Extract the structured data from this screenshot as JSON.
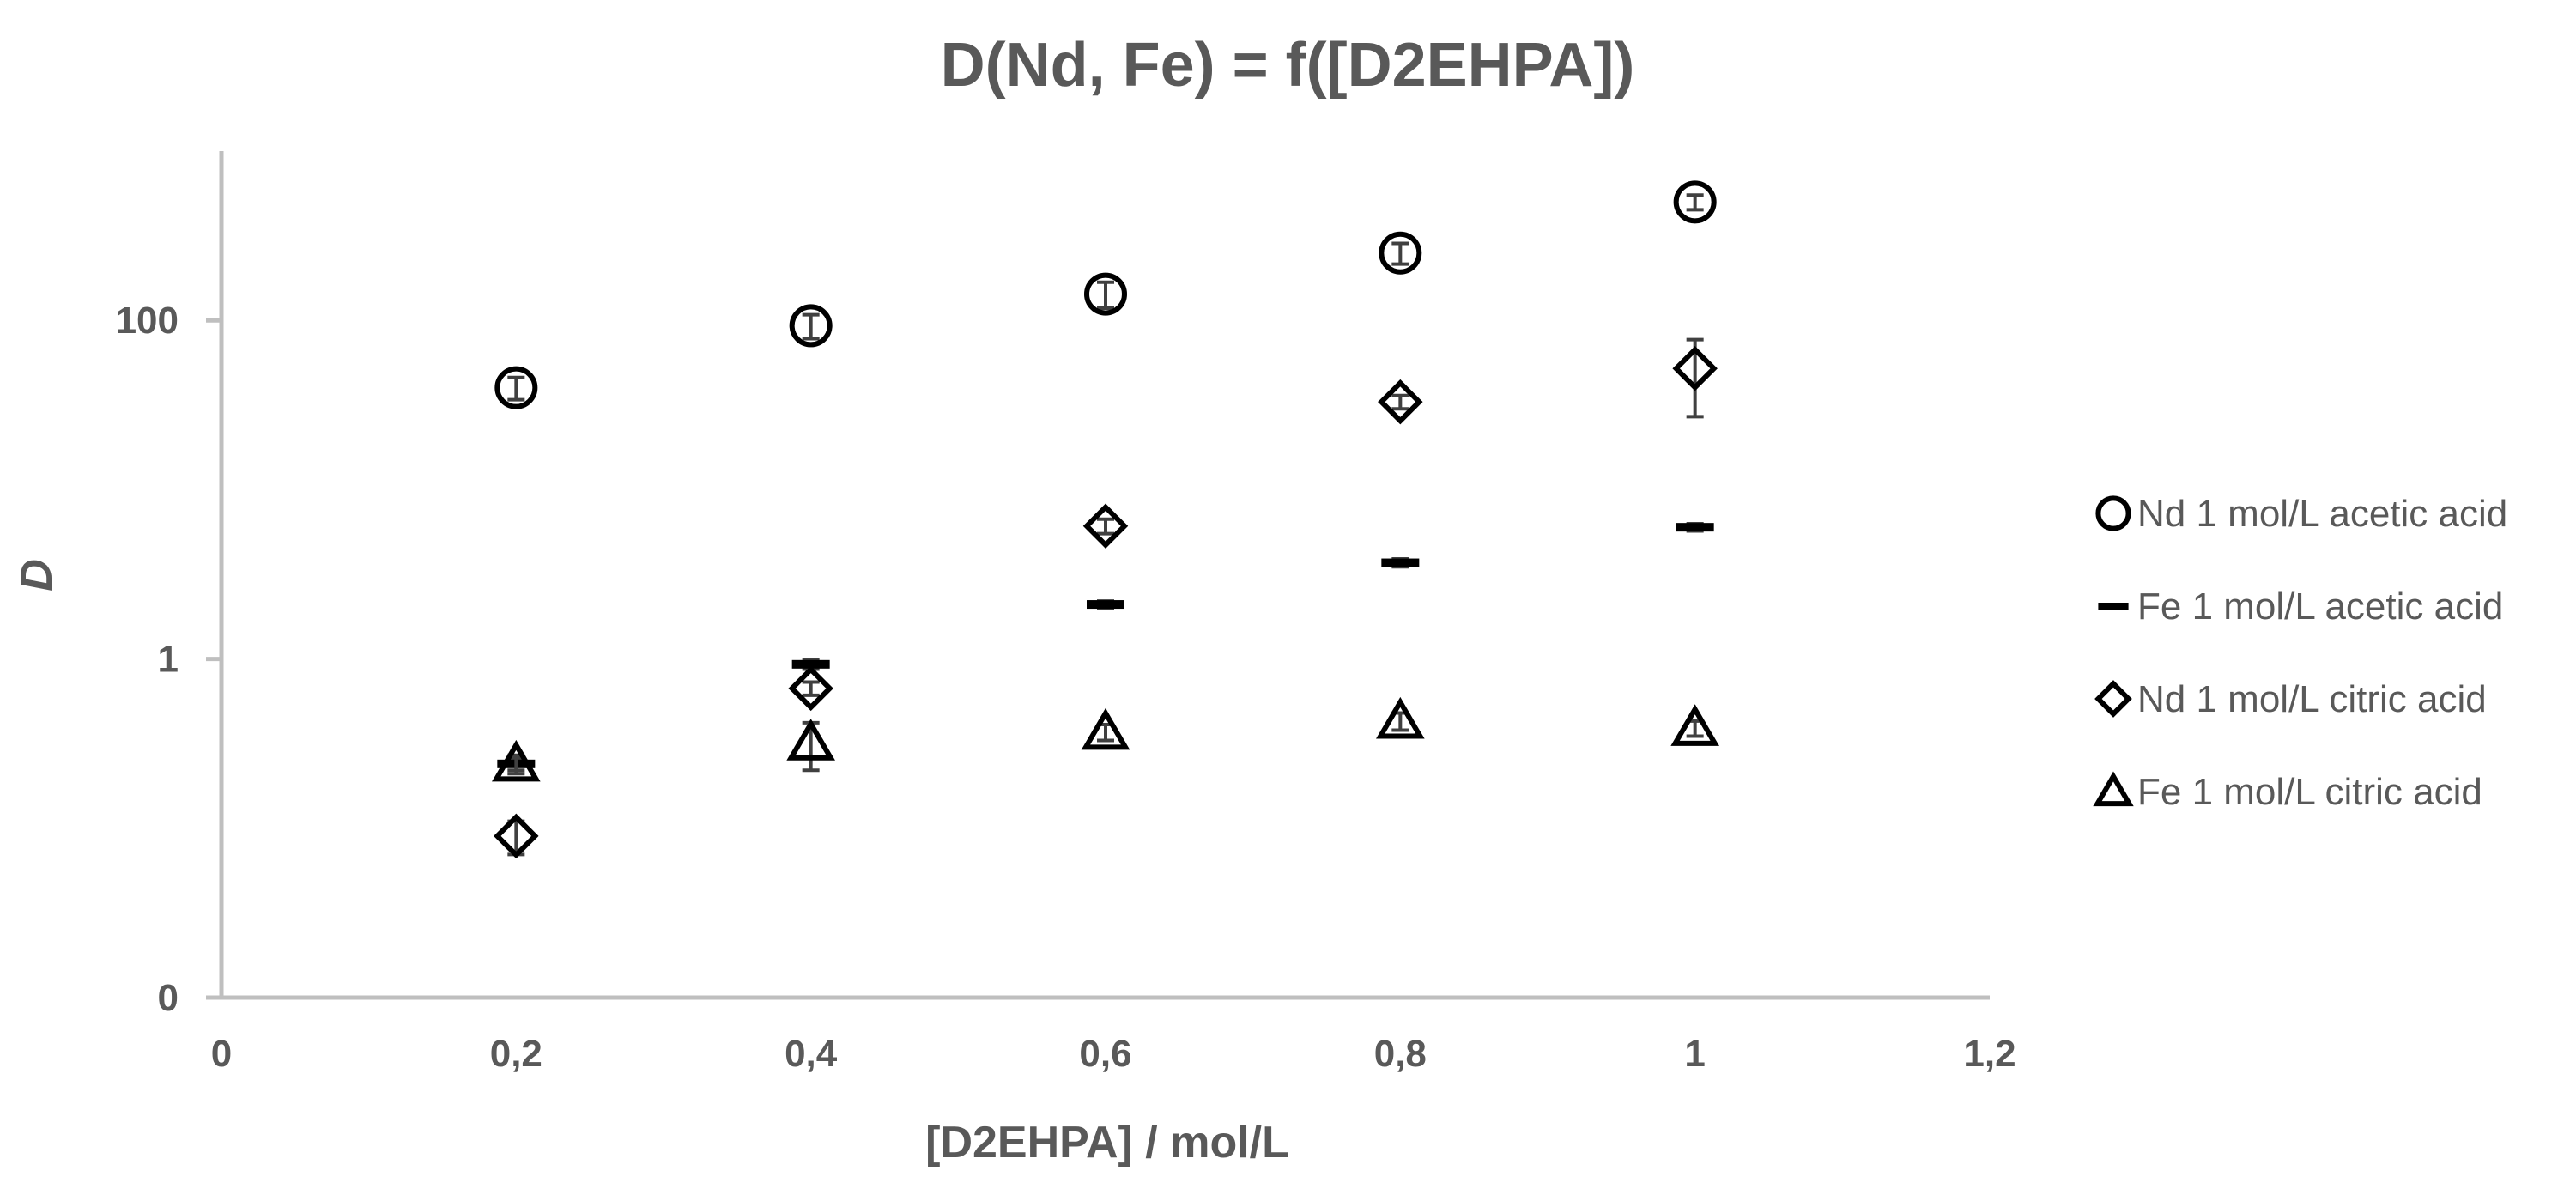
{
  "chart_data": {
    "type": "scatter",
    "title": "D(Nd, Fe) = f([D2EHPA])",
    "xlabel": "[D2EHPA] / mol/L",
    "ylabel": "D",
    "xlim": [
      0,
      1.2
    ],
    "ylim": [
      0.01,
      1000
    ],
    "y_scale": "log",
    "x_ticks": [
      0,
      0.2,
      0.4,
      0.6,
      0.8,
      1,
      1.2
    ],
    "x_tick_labels": [
      "0",
      "0,2",
      "0,4",
      "0,6",
      "0,8",
      "1",
      "1,2"
    ],
    "y_ticks": [
      0.01,
      1,
      100
    ],
    "y_tick_labels": [
      "0",
      "1",
      "100"
    ],
    "grid": false,
    "legend_position": "right",
    "series": [
      {
        "name": "Nd 1 mol/L acetic acid",
        "marker": "circle",
        "x": [
          0.2,
          0.4,
          0.6,
          0.8,
          1
        ],
        "y": [
          40,
          93,
          143,
          250,
          500
        ],
        "err": [
          6,
          15,
          25,
          35,
          50
        ]
      },
      {
        "name": "Fe 1 mol/L acetic acid",
        "marker": "dash",
        "x": [
          0.2,
          0.4,
          0.6,
          0.8,
          1
        ],
        "y": [
          0.24,
          0.93,
          2.1,
          3.7,
          6.0
        ],
        "err": [
          0.02,
          0.06,
          0.1,
          0.2,
          0.3
        ]
      },
      {
        "name": "Nd 1 mol/L citric acid",
        "marker": "diamond",
        "x": [
          0.2,
          0.4,
          0.6,
          0.8,
          1
        ],
        "y": [
          0.09,
          0.67,
          6.1,
          33,
          52
        ],
        "err": [
          0.02,
          0.06,
          0.6,
          3,
          25
        ]
      },
      {
        "name": "Fe 1 mol/L citric acid",
        "marker": "triangle",
        "x": [
          0.2,
          0.4,
          0.6,
          0.8,
          1
        ],
        "y": [
          0.24,
          0.32,
          0.37,
          0.43,
          0.39
        ],
        "err": [
          0.03,
          0.1,
          0.04,
          0.05,
          0.04
        ]
      }
    ]
  }
}
